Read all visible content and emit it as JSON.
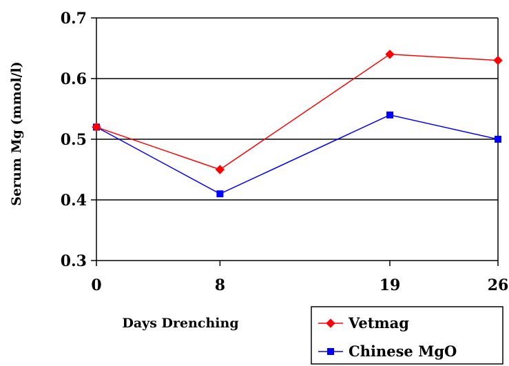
{
  "chart_data": {
    "type": "line",
    "title": "",
    "xlabel": "Days Drenching",
    "ylabel": "Serum Mg (mmol/l)",
    "x": [
      0,
      8,
      19,
      26
    ],
    "x_tick_labels": [
      "0",
      "8",
      "19",
      "26"
    ],
    "ylim": [
      0.3,
      0.7
    ],
    "y_ticks": [
      0.3,
      0.4,
      0.5,
      0.6,
      0.7
    ],
    "y_tick_labels": [
      "0.3",
      "0.4",
      "0.5",
      "0.6",
      "0.7"
    ],
    "grid": "horizontal",
    "legend_position": "bottom-right",
    "series": [
      {
        "name": "Vetmag",
        "values": [
          0.52,
          0.45,
          0.64,
          0.63
        ],
        "color": "#ff0000",
        "marker": "diamond"
      },
      {
        "name": "Chinese MgO",
        "values": [
          0.52,
          0.41,
          0.54,
          0.5
        ],
        "color": "#0000ff",
        "marker": "square"
      }
    ]
  }
}
